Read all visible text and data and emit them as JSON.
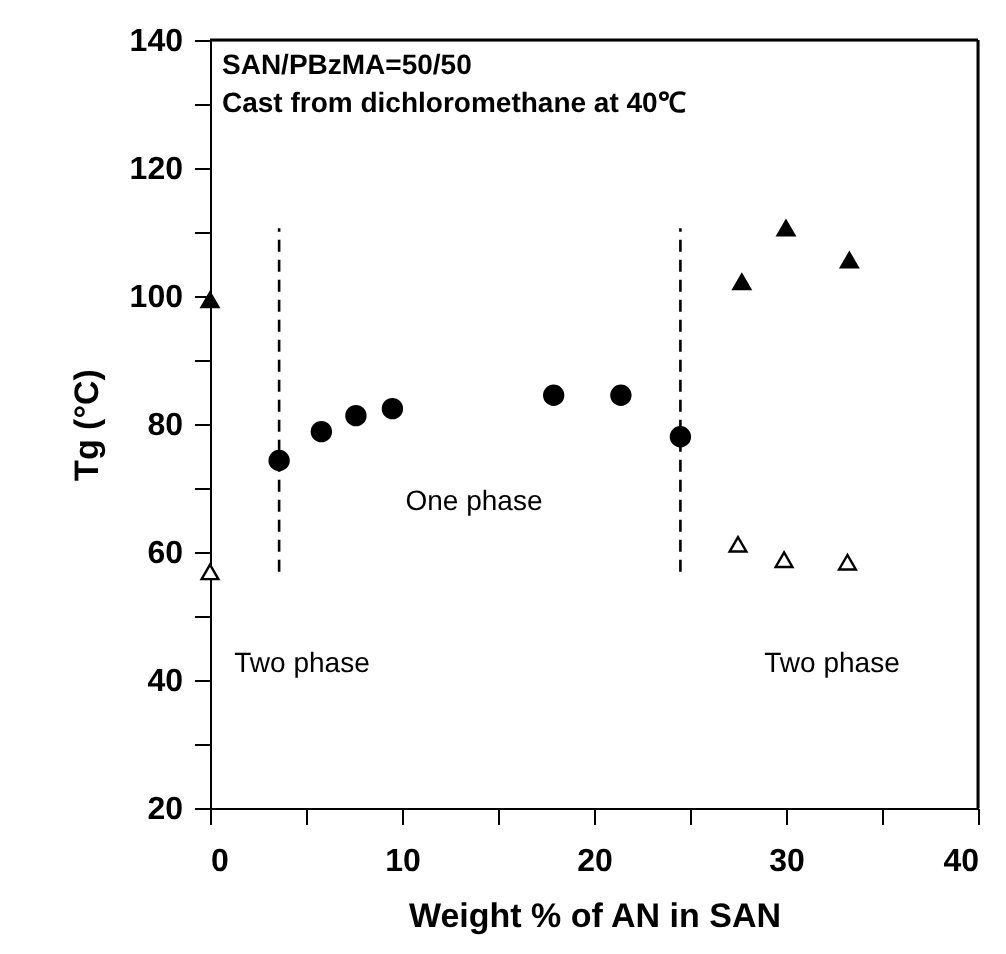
{
  "chart_data": {
    "type": "scatter",
    "xlabel": "Weight % of AN in SAN",
    "ylabel": "Tg (°C)",
    "xlim": [
      0,
      40
    ],
    "ylim": [
      20,
      140
    ],
    "xticks": [
      0,
      {
        "value": 5,
        "label": null
      },
      10,
      {
        "value": 15,
        "label": null
      },
      20,
      {
        "value": 25,
        "label": null
      },
      30,
      {
        "value": 35,
        "label": null
      },
      40
    ],
    "yticks": [
      20,
      {
        "value": 30,
        "label": null
      },
      40,
      {
        "value": 50,
        "label": null
      },
      60,
      {
        "value": 70,
        "label": null
      },
      80,
      {
        "value": 90,
        "label": null
      },
      100,
      {
        "value": 110,
        "label": null
      },
      120,
      {
        "value": 130,
        "label": null
      },
      140
    ],
    "grid": false,
    "series": [
      {
        "color": "#000000",
        "marker": "circle",
        "x": [
          3.6,
          5.8,
          7.6,
          9.5,
          17.9,
          21.4,
          24.5
        ],
        "values": [
          74.3,
          78.8,
          81.3,
          82.4,
          84.5,
          84.5,
          78.0
        ]
      },
      {
        "color": "#000000",
        "marker": "triangle",
        "x": [
          0,
          27.7,
          30.0,
          33.3
        ],
        "values": [
          99.4,
          102.2,
          110.6,
          105.6
        ]
      },
      {
        "color": "#ffffff",
        "marker": "triangle",
        "x": [
          0,
          27.5,
          29.9,
          33.2
        ],
        "values": [
          56.9,
          61.2,
          58.8,
          58.4
        ]
      }
    ],
    "ref_lines": [
      {
        "axis": "x",
        "value": 3.6,
        "line_style": "dashed"
      },
      {
        "axis": "x",
        "value": 24.5,
        "line_style": "dashed"
      }
    ],
    "annotations": [
      "SAN/PBzMA=50/50",
      "Cast from dichloromethane at 40℃",
      "One phase",
      "Two phase",
      "Two phase"
    ]
  }
}
